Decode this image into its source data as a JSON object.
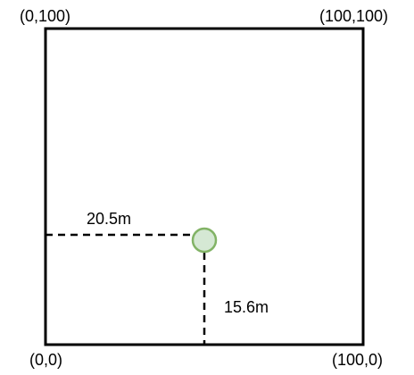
{
  "corners": {
    "top_left": "(0,100)",
    "top_right": "(100,100)",
    "bottom_left": "(0,0)",
    "bottom_right": "(100,0)"
  },
  "measurements": {
    "horizontal": "20.5m",
    "vertical": "15.6m"
  },
  "colors": {
    "border": "#000000",
    "dashed_line": "#000000",
    "point_fill": "#d5e8d4",
    "point_stroke": "#82b366"
  }
}
